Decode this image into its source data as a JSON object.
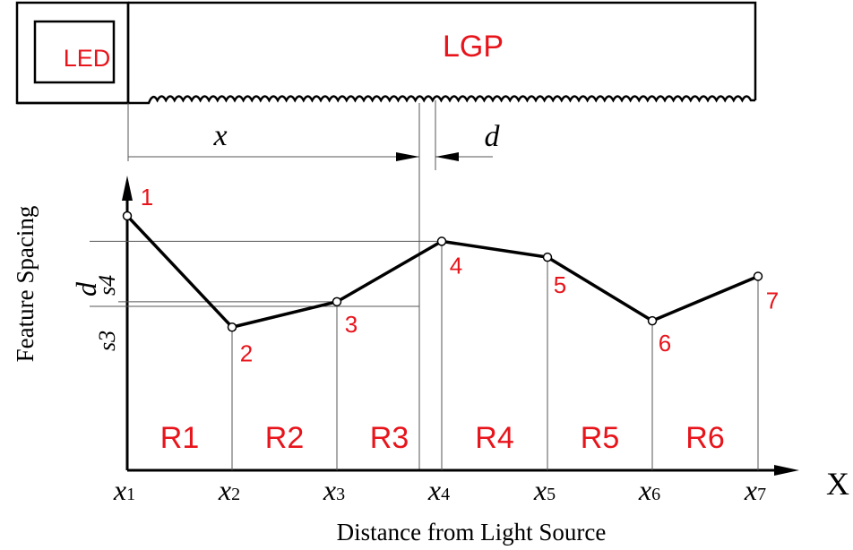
{
  "labels": {
    "led": "LED",
    "lgp": "LGP",
    "x_dim": "x",
    "d_dim": "d",
    "y_axis": "Feature Spacing",
    "y_d": "d",
    "s4": "s4",
    "s3": "s3",
    "x_axis_end": "X",
    "x_axis_title": "Distance from Light Source"
  },
  "colors": {
    "line": "#000000",
    "accent": "#e8141b",
    "thin": "#333333"
  },
  "x_ticks": [
    {
      "base": "x",
      "sub": "1"
    },
    {
      "base": "x",
      "sub": "2"
    },
    {
      "base": "x",
      "sub": "3"
    },
    {
      "base": "x",
      "sub": "4"
    },
    {
      "base": "x",
      "sub": "5"
    },
    {
      "base": "x",
      "sub": "6"
    },
    {
      "base": "x",
      "sub": "7"
    }
  ],
  "points": [
    {
      "label": "1",
      "spacing": 0.8
    },
    {
      "label": "2",
      "spacing": 0.45
    },
    {
      "label": "3",
      "spacing": 0.53
    },
    {
      "label": "4",
      "spacing": 0.72
    },
    {
      "label": "5",
      "spacing": 0.67
    },
    {
      "label": "6",
      "spacing": 0.47
    },
    {
      "label": "7",
      "spacing": 0.61
    }
  ],
  "regions": [
    "R1",
    "R2",
    "R3",
    "R4",
    "R5",
    "R6"
  ]
}
